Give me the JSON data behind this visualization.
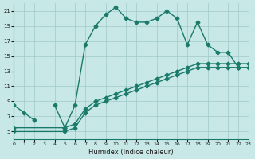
{
  "xlabel": "Humidex (Indice chaleur)",
  "ylabel": "",
  "bg_color": "#c8e8e8",
  "line_color": "#1a7a6a",
  "grid_color": "#a0c8c8",
  "xlim": [
    0,
    23
  ],
  "ylim": [
    4,
    22
  ],
  "xticks": [
    0,
    1,
    2,
    3,
    4,
    5,
    6,
    7,
    8,
    9,
    10,
    11,
    12,
    13,
    14,
    15,
    16,
    17,
    18,
    19,
    20,
    21,
    22,
    23
  ],
  "yticks": [
    5,
    7,
    9,
    11,
    13,
    15,
    17,
    19,
    21
  ],
  "curve1_x": [
    0,
    1,
    2,
    4,
    5,
    6,
    7,
    8,
    9,
    10,
    11,
    12,
    13,
    14,
    15,
    16,
    17,
    18,
    19,
    20,
    21,
    22
  ],
  "curve1_y": [
    8.5,
    7.5,
    6.5,
    8.5,
    5.5,
    8.5,
    16.5,
    19.0,
    20.5,
    21.5,
    20.0,
    19.5,
    19.5,
    20.0,
    21.0,
    20.0,
    16.5,
    19.5,
    16.5,
    15.5,
    15.5,
    13.5
  ],
  "curve1_break": 3,
  "curve2_x": [
    0,
    5,
    6,
    7,
    8,
    9,
    10,
    11,
    12,
    13,
    14,
    15,
    16,
    17,
    18,
    19,
    20,
    21,
    22,
    23
  ],
  "curve2_y": [
    5.0,
    5.0,
    5.5,
    7.5,
    8.5,
    9.0,
    9.5,
    10.0,
    10.5,
    11.0,
    11.5,
    12.0,
    12.5,
    13.0,
    13.5,
    13.5,
    13.5,
    13.5,
    13.5,
    13.5
  ],
  "curve3_x": [
    0,
    5,
    6,
    7,
    8,
    9,
    10,
    11,
    12,
    13,
    14,
    15,
    16,
    17,
    18,
    19,
    20,
    21,
    22,
    23
  ],
  "curve3_y": [
    5.5,
    5.5,
    6.0,
    8.0,
    9.0,
    9.5,
    10.0,
    10.5,
    11.0,
    11.5,
    12.0,
    12.5,
    13.0,
    13.5,
    14.0,
    14.0,
    14.0,
    14.0,
    14.0,
    14.0
  ]
}
